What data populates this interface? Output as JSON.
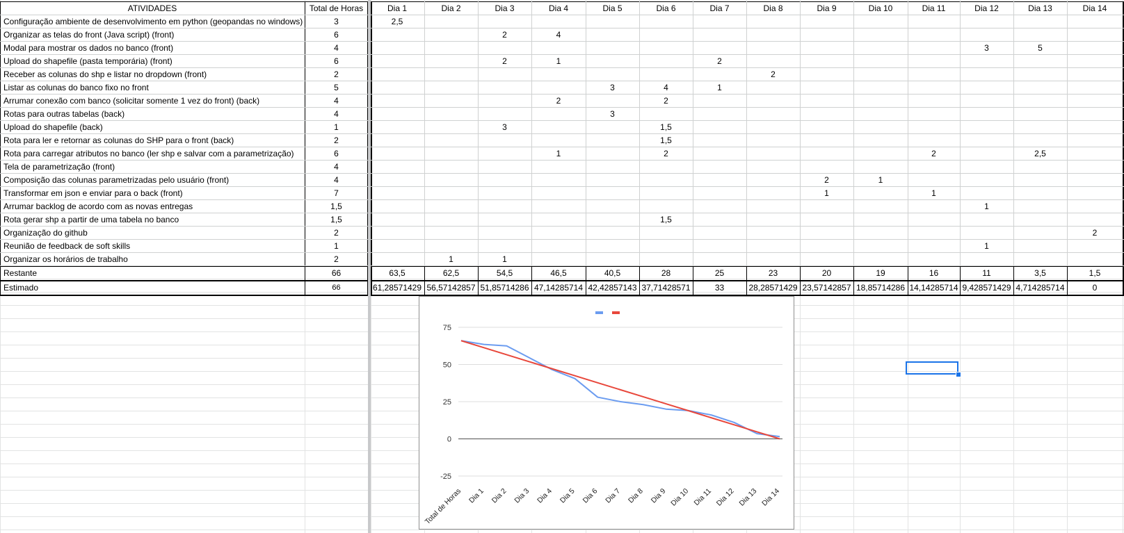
{
  "header": {
    "activities": "ATIVIDADES",
    "total_hours": "Total de Horas",
    "days": [
      "Dia 1",
      "Dia 2",
      "Dia 3",
      "Dia 4",
      "Dia 5",
      "Dia 6",
      "Dia 7",
      "Dia 8",
      "Dia 9",
      "Dia 10",
      "Dia 11",
      "Dia 12",
      "Dia 13",
      "Dia 14"
    ]
  },
  "rows": [
    {
      "activity": "Configuração ambiente de desenvolvimento em python (geopandas no windows)",
      "total": "3",
      "days": [
        "2,5",
        "",
        "",
        "",
        "",
        "",
        "",
        "",
        "",
        "",
        "",
        "",
        "",
        ""
      ]
    },
    {
      "activity": "Organizar as telas do front (Java script) (front)",
      "total": "6",
      "days": [
        "",
        "",
        "2",
        "4",
        "",
        "",
        "",
        "",
        "",
        "",
        "",
        "",
        "",
        ""
      ]
    },
    {
      "activity": "Modal para mostrar os dados no banco (front)",
      "total": "4",
      "days": [
        "",
        "",
        "",
        "",
        "",
        "",
        "",
        "",
        "",
        "",
        "",
        "3",
        "5",
        ""
      ]
    },
    {
      "activity": "Upload do shapefile (pasta temporária) (front)",
      "total": "6",
      "days": [
        "",
        "",
        "2",
        "1",
        "",
        "",
        "2",
        "",
        "",
        "",
        "",
        "",
        "",
        ""
      ]
    },
    {
      "activity": "Receber as colunas do shp e listar no dropdown (front)",
      "total": "2",
      "days": [
        "",
        "",
        "",
        "",
        "",
        "",
        "",
        "2",
        "",
        "",
        "",
        "",
        "",
        ""
      ]
    },
    {
      "activity": "Listar as colunas do banco fixo no front",
      "total": "5",
      "days": [
        "",
        "",
        "",
        "",
        "3",
        "4",
        "1",
        "",
        "",
        "",
        "",
        "",
        "",
        ""
      ]
    },
    {
      "activity": "Arrumar conexão com banco (solicitar somente 1 vez do front) (back)",
      "total": "4",
      "days": [
        "",
        "",
        "",
        "2",
        "",
        "2",
        "",
        "",
        "",
        "",
        "",
        "",
        "",
        ""
      ]
    },
    {
      "activity": "Rotas para outras tabelas (back)",
      "total": "4",
      "days": [
        "",
        "",
        "",
        "",
        "3",
        "",
        "",
        "",
        "",
        "",
        "",
        "",
        "",
        ""
      ]
    },
    {
      "activity": "Upload do shapefile (back)",
      "total": "1",
      "days": [
        "",
        "",
        "3",
        "",
        "",
        "1,5",
        "",
        "",
        "",
        "",
        "",
        "",
        "",
        ""
      ]
    },
    {
      "activity": "Rota para ler e retornar as colunas do SHP para o front (back)",
      "total": "2",
      "days": [
        "",
        "",
        "",
        "",
        "",
        "1,5",
        "",
        "",
        "",
        "",
        "",
        "",
        "",
        ""
      ]
    },
    {
      "activity": "Rota para carregar atributos no banco (ler shp e salvar com a parametrização)",
      "total": "6",
      "days": [
        "",
        "",
        "",
        "1",
        "",
        "2",
        "",
        "",
        "",
        "",
        "2",
        "",
        "2,5",
        ""
      ]
    },
    {
      "activity": "Tela de parametrização (front)",
      "total": "4",
      "days": [
        "",
        "",
        "",
        "",
        "",
        "",
        "",
        "",
        "",
        "",
        "",
        "",
        "",
        ""
      ]
    },
    {
      "activity": "Composição das colunas parametrizadas pelo usuário (front)",
      "total": "4",
      "days": [
        "",
        "",
        "",
        "",
        "",
        "",
        "",
        "",
        "2",
        "1",
        "",
        "",
        "",
        ""
      ]
    },
    {
      "activity": "Transformar em json e enviar para o back (front)",
      "total": "7",
      "days": [
        "",
        "",
        "",
        "",
        "",
        "",
        "",
        "",
        "1",
        "",
        "1",
        "",
        "",
        ""
      ]
    },
    {
      "activity": "Arrumar backlog de acordo com as novas entregas",
      "total": "1,5",
      "days": [
        "",
        "",
        "",
        "",
        "",
        "",
        "",
        "",
        "",
        "",
        "",
        "1",
        "",
        ""
      ]
    },
    {
      "activity": "Rota gerar shp a partir de uma tabela no banco",
      "total": "1,5",
      "days": [
        "",
        "",
        "",
        "",
        "",
        "1,5",
        "",
        "",
        "",
        "",
        "",
        "",
        "",
        ""
      ]
    },
    {
      "activity": "Organização do github",
      "total": "2",
      "days": [
        "",
        "",
        "",
        "",
        "",
        "",
        "",
        "",
        "",
        "",
        "",
        "",
        "",
        "2"
      ]
    },
    {
      "activity": "Reunião de feedback de soft skills",
      "total": "1",
      "days": [
        "",
        "",
        "",
        "",
        "",
        "",
        "",
        "",
        "",
        "",
        "",
        "1",
        "",
        ""
      ]
    },
    {
      "activity": "Organizar os horários de trabalho",
      "total": "2",
      "days": [
        "",
        "1",
        "1",
        "",
        "",
        "",
        "",
        "",
        "",
        "",
        "",
        "",
        "",
        ""
      ]
    }
  ],
  "summary": {
    "remaining": {
      "label": "Restante",
      "total": "66",
      "days": [
        "63,5",
        "62,5",
        "54,5",
        "46,5",
        "40,5",
        "28",
        "25",
        "23",
        "20",
        "19",
        "16",
        "11",
        "3,5",
        "1,5"
      ]
    },
    "estimated": {
      "label": "Estimado",
      "total": "66",
      "days": [
        "61,28571429",
        "56,57142857",
        "51,85714286",
        "47,14285714",
        "42,42857143",
        "37,71428571",
        "33",
        "28,28571429",
        "23,57142857",
        "18,85714286",
        "14,14285714",
        "9,428571429",
        "4,714285714",
        "0"
      ]
    }
  },
  "chart_data": {
    "type": "line",
    "categories": [
      "Total de Horas",
      "Dia 1",
      "Dia 2",
      "Dia 3",
      "Dia 4",
      "Dia 5",
      "Dia 6",
      "Dia 7",
      "Dia 8",
      "Dia 9",
      "Dia 10",
      "Dia 11",
      "Dia 12",
      "Dia 13",
      "Dia 14"
    ],
    "series": [
      {
        "color": "#6b9cf0",
        "values": [
          66,
          63.5,
          62.5,
          54.5,
          46.5,
          40.5,
          28,
          25,
          23,
          20,
          19,
          16,
          11,
          3.5,
          1.5
        ]
      },
      {
        "color": "#e8473b",
        "values": [
          66,
          61.29,
          56.57,
          51.86,
          47.14,
          42.43,
          37.71,
          33,
          28.29,
          23.57,
          18.86,
          14.14,
          9.43,
          4.71,
          0
        ]
      }
    ],
    "ylim": [
      -25,
      75
    ],
    "yticks": [
      "75",
      "50",
      "25",
      "0",
      "-25"
    ],
    "legend": "top-center",
    "grid": true
  }
}
